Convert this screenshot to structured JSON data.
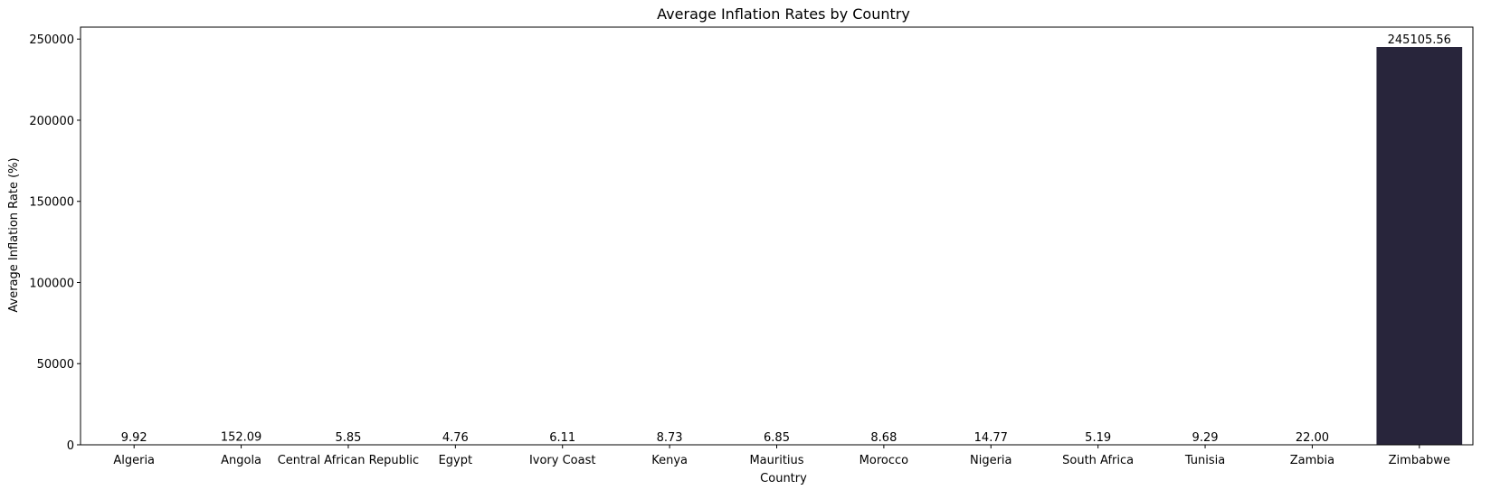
{
  "chart_data": {
    "type": "bar",
    "title": "Average Inflation Rates by Country",
    "xlabel": "Country",
    "ylabel": "Average Inflation Rate (%)",
    "categories": [
      "Algeria",
      "Angola",
      "Central African Republic",
      "Egypt",
      "Ivory Coast",
      "Kenya",
      "Mauritius",
      "Morocco",
      "Nigeria",
      "South Africa",
      "Tunisia",
      "Zambia",
      "Zimbabwe"
    ],
    "values": [
      9.92,
      152.09,
      5.85,
      4.76,
      6.11,
      8.73,
      6.85,
      8.68,
      14.77,
      5.19,
      9.29,
      22.0,
      245105.56
    ],
    "value_labels": [
      "9.92",
      "152.09",
      "5.85",
      "4.76",
      "6.11",
      "8.73",
      "6.85",
      "8.68",
      "14.77",
      "5.19",
      "9.29",
      "22.00",
      "245105.56"
    ],
    "ylim": [
      0,
      257360.84
    ],
    "yticks": [
      0,
      50000,
      100000,
      150000,
      200000,
      250000
    ],
    "ytick_labels": [
      "0",
      "50000",
      "100000",
      "150000",
      "200000",
      "250000"
    ],
    "grid": false,
    "legend": "none",
    "colors": [
      "#0b6b5e",
      "#0c6a62",
      "#106467",
      "#165d6b",
      "#1c566d",
      "#214f6d",
      "#25486c",
      "#29416a",
      "#2b3a66",
      "#2c3461",
      "#2c2e5a",
      "#2b2a4c",
      "#28253b"
    ]
  }
}
